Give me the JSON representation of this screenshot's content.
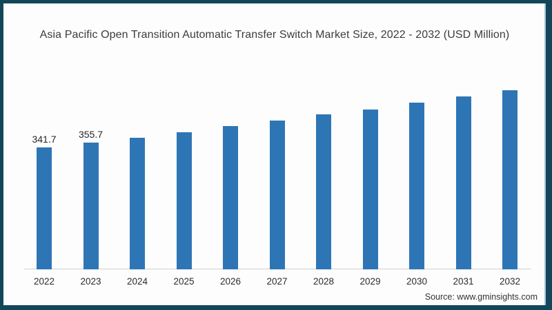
{
  "frame": {
    "border_color": "#14465a",
    "background": "#fdfdfd"
  },
  "title": "Asia Pacific Open Transition Automatic Transfer Switch Market Size, 2022 - 2032 (USD Million)",
  "source": "Source: www.gminsights.com",
  "chart_data": {
    "type": "bar",
    "title": "Asia Pacific Open Transition Automatic Transfer Switch Market Size, 2022 - 2032 (USD Million)",
    "categories": [
      "2022",
      "2023",
      "2024",
      "2025",
      "2026",
      "2027",
      "2028",
      "2029",
      "2030",
      "2031",
      "2032"
    ],
    "values": [
      341.7,
      355.7,
      369.1,
      384.4,
      401.8,
      419.0,
      434.9,
      450.1,
      467.9,
      485.0,
      504.1
    ],
    "data_labels": [
      "341.7",
      "355.7",
      "",
      "",
      "",
      "",
      "",
      "",
      "",
      "",
      ""
    ],
    "xlabel": "",
    "ylabel": "",
    "ylim": [
      0,
      550
    ],
    "grid": false,
    "legend": false,
    "bar_color": "#2e75b5",
    "axis_line_color": "#cfcfcf"
  }
}
